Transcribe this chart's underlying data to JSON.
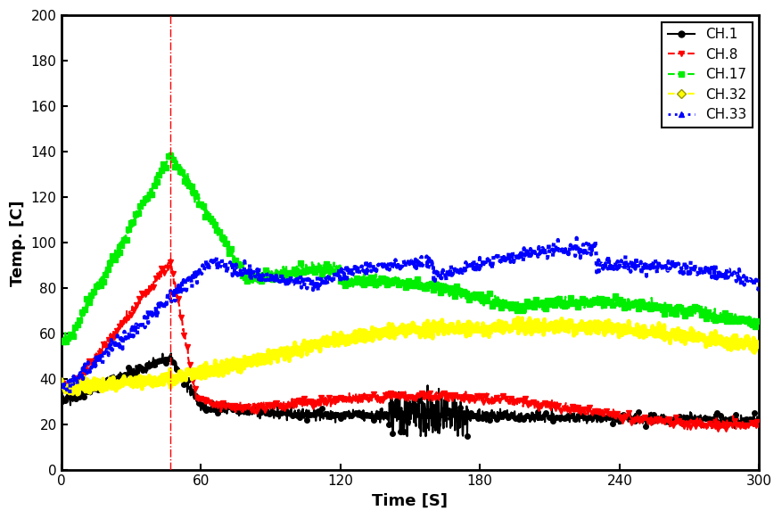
{
  "xlabel": "Time [S]",
  "ylabel": "Temp. [C]",
  "xlim": [
    0,
    300
  ],
  "ylim": [
    0,
    200
  ],
  "xticks": [
    0,
    60,
    120,
    180,
    240,
    300
  ],
  "yticks": [
    0,
    20,
    40,
    60,
    80,
    100,
    120,
    140,
    160,
    180,
    200
  ],
  "vline_x": 47,
  "vline_color": "#ff0000",
  "channels": [
    "CH.1",
    "CH.8",
    "CH.17",
    "CH.32",
    "CH.33"
  ],
  "colors": [
    "#000000",
    "#ff0000",
    "#00ee00",
    "#ffff00",
    "#0000ff"
  ],
  "linestyles": [
    "-",
    "--",
    "--",
    "-",
    ":"
  ],
  "markers": [
    "o",
    "v",
    "s",
    null,
    null
  ],
  "linewidths": [
    1.5,
    1.5,
    1.8,
    3.5,
    3.0
  ],
  "legend_loc": "upper right",
  "legend_markers": [
    "o",
    "v",
    "s",
    "D",
    "^"
  ]
}
